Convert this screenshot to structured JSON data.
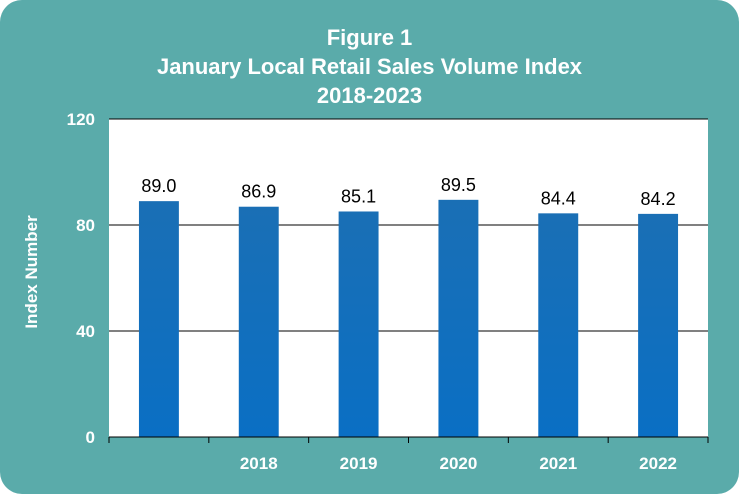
{
  "chart_data": {
    "type": "bar",
    "title": "Figure 1",
    "subtitle": "January Local Retail Sales Volume Index",
    "subtitle2": "2018-2023",
    "ylabel": "Index Number",
    "xlabel": "",
    "categories": [
      "",
      "2018",
      "2019",
      "2020",
      "2021",
      "2022"
    ],
    "values": [
      89.0,
      86.9,
      85.1,
      89.5,
      84.4,
      84.2
    ],
    "data_labels": [
      "89.0",
      "86.9",
      "85.1",
      "89.5",
      "84.4",
      "84.2"
    ],
    "ylim": [
      0,
      120
    ],
    "yticks": [
      0,
      40,
      80,
      120
    ],
    "grid": true,
    "legend": "none",
    "colors": {
      "background": "#5aabaa",
      "plot_area": "#ffffff",
      "bar_top": "#1a6fb5",
      "bar_bottom": "#0a6fc4",
      "text": "#ffffff"
    }
  }
}
